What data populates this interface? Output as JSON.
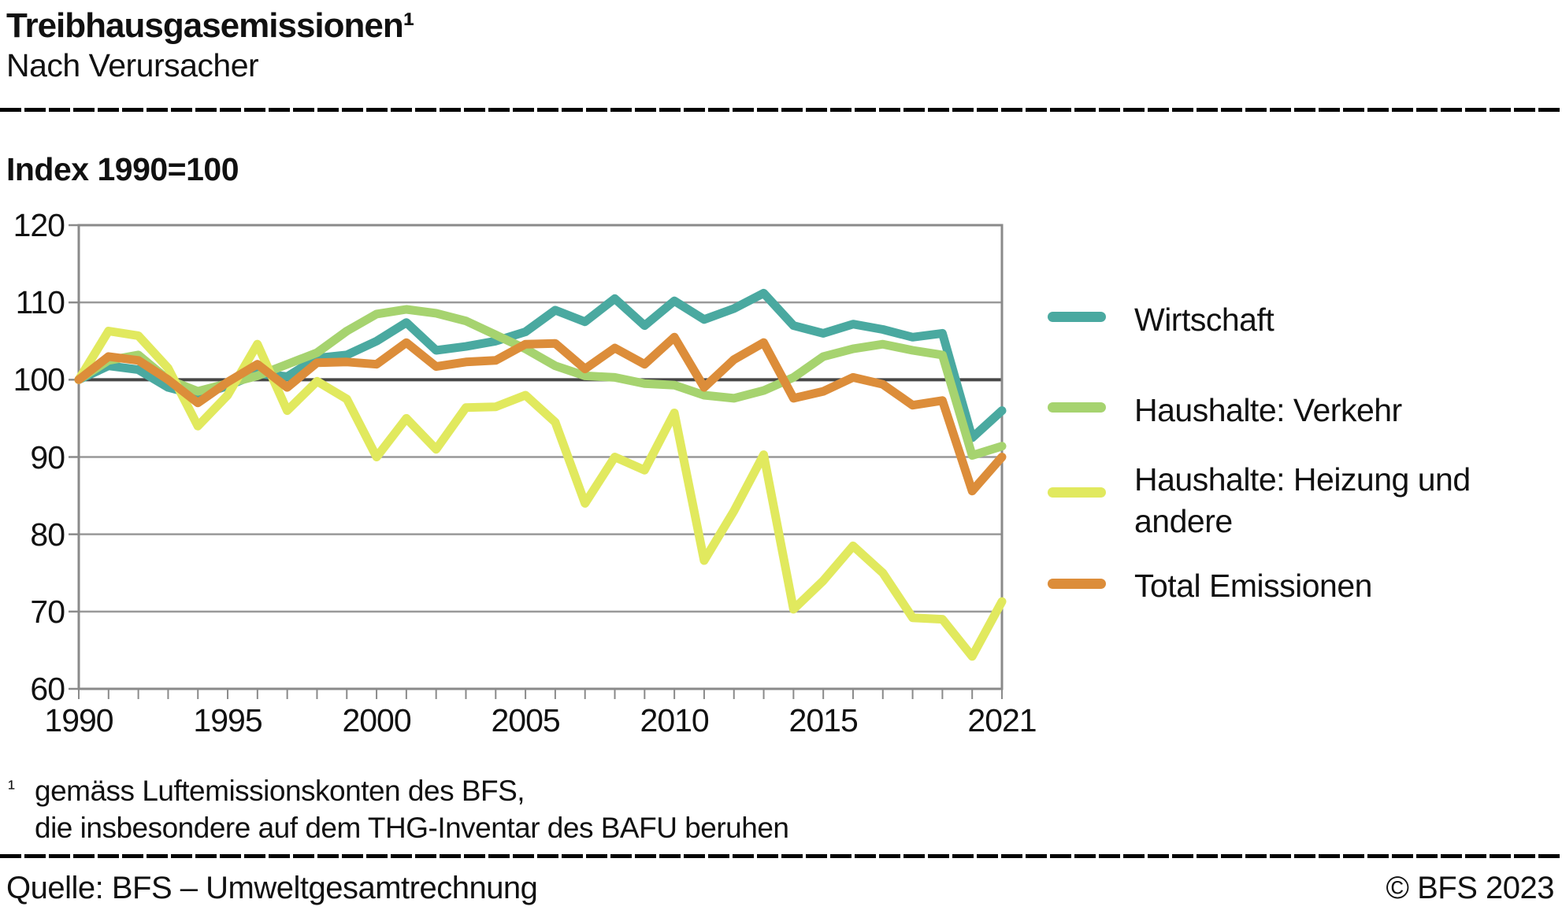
{
  "header": {
    "title": "Treibhausgasemissionen¹",
    "subtitle": "Nach Verursacher"
  },
  "footnote": {
    "marker": "¹",
    "line1": "gemäss Luftemissionskonten des BFS,",
    "line2": "die insbesondere auf dem THG-Inventar des BAFU beruhen"
  },
  "footer": {
    "source": "Quelle: BFS – Umweltgesamtrechnung",
    "copyright": "© BFS 2023"
  },
  "chart_data": {
    "type": "line",
    "title": "Treibhausgasemissionen – Nach Verursacher",
    "ylabel": "Index 1990=100",
    "xlabel": "",
    "ylim": [
      60,
      120
    ],
    "y_ticks": [
      120,
      110,
      100,
      90,
      80,
      70,
      60
    ],
    "x_tick_labels": [
      1990,
      1995,
      2000,
      2005,
      2010,
      2015,
      2021
    ],
    "grid": "horizontal",
    "legend_position": "right",
    "years": [
      1990,
      1991,
      1992,
      1993,
      1994,
      1995,
      1996,
      1997,
      1998,
      1999,
      2000,
      2001,
      2002,
      2003,
      2004,
      2005,
      2006,
      2007,
      2008,
      2009,
      2010,
      2011,
      2012,
      2013,
      2014,
      2015,
      2016,
      2017,
      2018,
      2019,
      2020,
      2021
    ],
    "series": [
      {
        "name": "Wirtschaft",
        "color": "#4aa9a0",
        "values": [
          100,
          101.8,
          101.3,
          99,
          98,
          99.2,
          100.8,
          100.4,
          102.8,
          103.2,
          105,
          107.4,
          103.8,
          104.3,
          105,
          106.2,
          109,
          107.5,
          110.5,
          107,
          110.2,
          107.8,
          109.2,
          111.2,
          107,
          106,
          107.2,
          106.5,
          105.5,
          106,
          92.5,
          96
        ]
      },
      {
        "name": "Haushalte: Verkehr",
        "color": "#a6d36f",
        "values": [
          100,
          102.5,
          103.2,
          100,
          98.5,
          99.5,
          100.5,
          102,
          103.5,
          106.3,
          108.5,
          109.1,
          108.6,
          107.6,
          105.8,
          104,
          101.8,
          100.5,
          100.3,
          99.5,
          99.3,
          98,
          97.6,
          98.6,
          100.3,
          103,
          104,
          104.6,
          103.8,
          103.2,
          90.2,
          91.4
        ]
      },
      {
        "name": "Haushalte: Heizung und andere",
        "color": "#e1e95e",
        "values": [
          100,
          106.3,
          105.7,
          101.5,
          94,
          98,
          104.6,
          96,
          99.8,
          97.5,
          90,
          95,
          91,
          96.4,
          96.5,
          98,
          94.5,
          84,
          90,
          88.3,
          95.7,
          76.6,
          83,
          90.3,
          70.3,
          74,
          78.5,
          75,
          69.2,
          69,
          64.2,
          71.3
        ]
      },
      {
        "name": "Total Emissionen",
        "color": "#dc8d3a",
        "values": [
          100,
          103,
          102.5,
          100,
          97,
          99.7,
          102,
          99,
          102.2,
          102.3,
          102,
          104.8,
          101.7,
          102.3,
          102.5,
          104.6,
          104.7,
          101.4,
          104.1,
          102,
          105.5,
          99,
          102.6,
          104.8,
          97.6,
          98.5,
          100.3,
          99.4,
          96.7,
          97.3,
          85.6,
          90
        ]
      }
    ],
    "colors": {
      "frame": "#8a8a8a",
      "grid": "#999999",
      "grid_zero_line": "#474747",
      "text": "#111111"
    }
  }
}
